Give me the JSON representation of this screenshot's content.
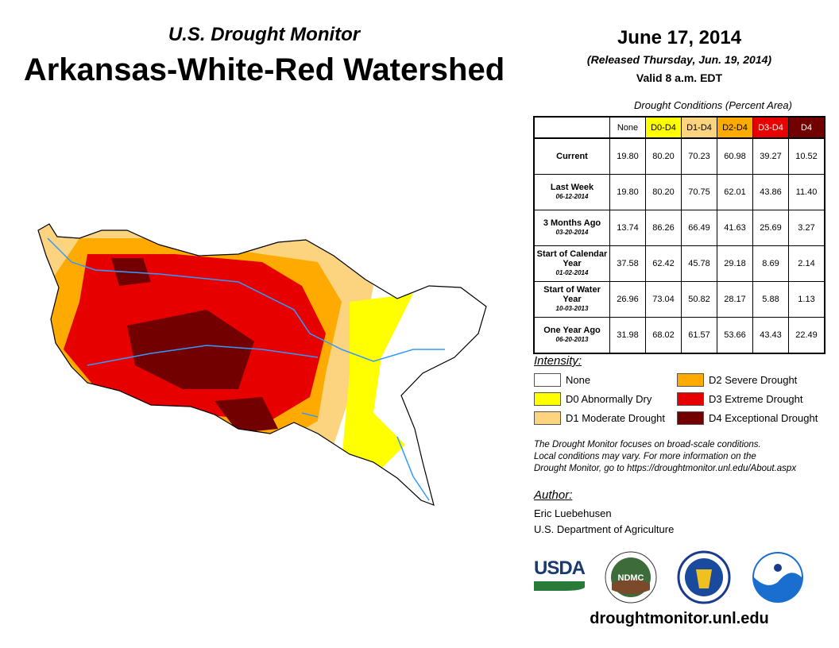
{
  "header": {
    "subtitle": "U.S. Drought Monitor",
    "title": "Arkansas-White-Red Watershed",
    "date": "June 17, 2014",
    "released": "(Released Thursday, Jun. 19, 2014)",
    "valid": "Valid 8 a.m. EDT"
  },
  "table": {
    "caption": "Drought Conditions (Percent Area)",
    "columns": [
      "None",
      "D0-D4",
      "D1-D4",
      "D2-D4",
      "D3-D4",
      "D4"
    ],
    "column_colors": [
      "#ffffff",
      "#ffff00",
      "#fcd37f",
      "#ffaa00",
      "#e60000",
      "#730000"
    ],
    "rows": [
      {
        "label": "Current",
        "date": "",
        "values": [
          "19.80",
          "80.20",
          "70.23",
          "60.98",
          "39.27",
          "10.52"
        ]
      },
      {
        "label": "Last Week",
        "date": "06-12-2014",
        "values": [
          "19.80",
          "80.20",
          "70.75",
          "62.01",
          "43.86",
          "11.40"
        ]
      },
      {
        "label": "3 Months Ago",
        "date": "03-20-2014",
        "values": [
          "13.74",
          "86.26",
          "66.49",
          "41.63",
          "25.69",
          "3.27"
        ]
      },
      {
        "label": "Start of Calendar Year",
        "date": "01-02-2014",
        "values": [
          "37.58",
          "62.42",
          "45.78",
          "29.18",
          "8.69",
          "2.14"
        ]
      },
      {
        "label": "Start of Water Year",
        "date": "10-03-2013",
        "values": [
          "26.96",
          "73.04",
          "50.82",
          "28.17",
          "5.88",
          "1.13"
        ]
      },
      {
        "label": "One Year Ago",
        "date": "06-20-2013",
        "values": [
          "31.98",
          "68.02",
          "61.57",
          "53.66",
          "43.43",
          "22.49"
        ]
      }
    ]
  },
  "legend": {
    "title": "Intensity:",
    "items": [
      {
        "label": "None",
        "color": "#ffffff"
      },
      {
        "label": "D0 Abnormally Dry",
        "color": "#ffff00"
      },
      {
        "label": "D1 Moderate Drought",
        "color": "#fcd37f"
      },
      {
        "label": "D2 Severe Drought",
        "color": "#ffaa00"
      },
      {
        "label": "D3 Extreme Drought",
        "color": "#e60000"
      },
      {
        "label": "D4 Exceptional Drought",
        "color": "#730000"
      }
    ]
  },
  "note": [
    "The Drought Monitor focuses on broad-scale conditions.",
    "Local conditions may vary. For more information on the",
    "Drought Monitor, go to https://droughtmonitor.unl.edu/About.aspx"
  ],
  "author": {
    "title": "Author:",
    "name": "Eric Luebehusen",
    "org": "U.S. Department of Agriculture"
  },
  "logos": {
    "usda": "USDA",
    "ndmc": "NDMC",
    "noaa": "NOAA"
  },
  "footer": {
    "url": "droughtmonitor.unl.edu"
  }
}
